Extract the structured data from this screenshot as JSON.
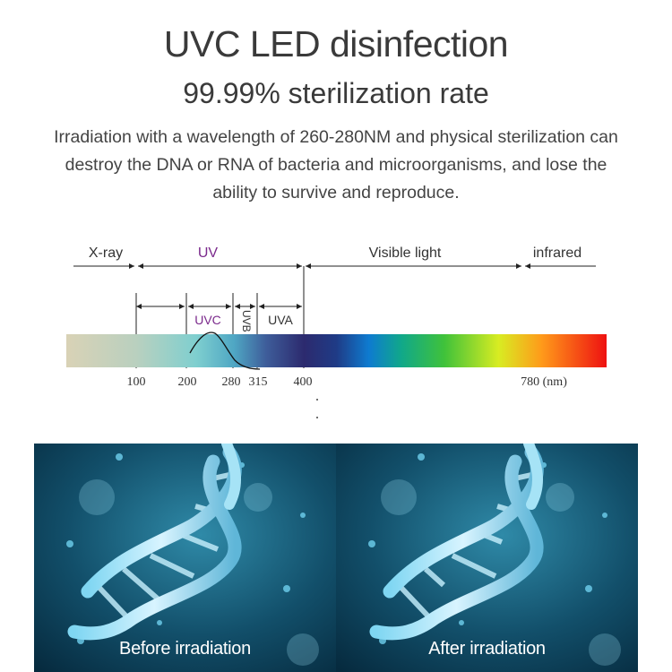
{
  "header": {
    "title": "UVC LED disinfection",
    "subtitle": "99.99% sterilization rate",
    "description": "Irradiation with a wavelength of 260-280NM and physical sterilization can destroy the DNA or RNA of bacteria and microorganisms, and lose the ability to survive and reproduce."
  },
  "spectrum": {
    "bands": [
      "X-ray",
      "UV",
      "Visible light",
      "infrared"
    ],
    "sub_bands": [
      "UVC",
      "UVB",
      "UVA"
    ],
    "ticks": [
      "100",
      "200",
      "280",
      "315",
      "400",
      "780 (nm)"
    ],
    "colors": {
      "uv_label": "#7b2a8c",
      "uvc_label": "#7b2a8c"
    }
  },
  "panels": [
    {
      "caption": "Before irradiation"
    },
    {
      "caption": "After irradiation"
    }
  ]
}
